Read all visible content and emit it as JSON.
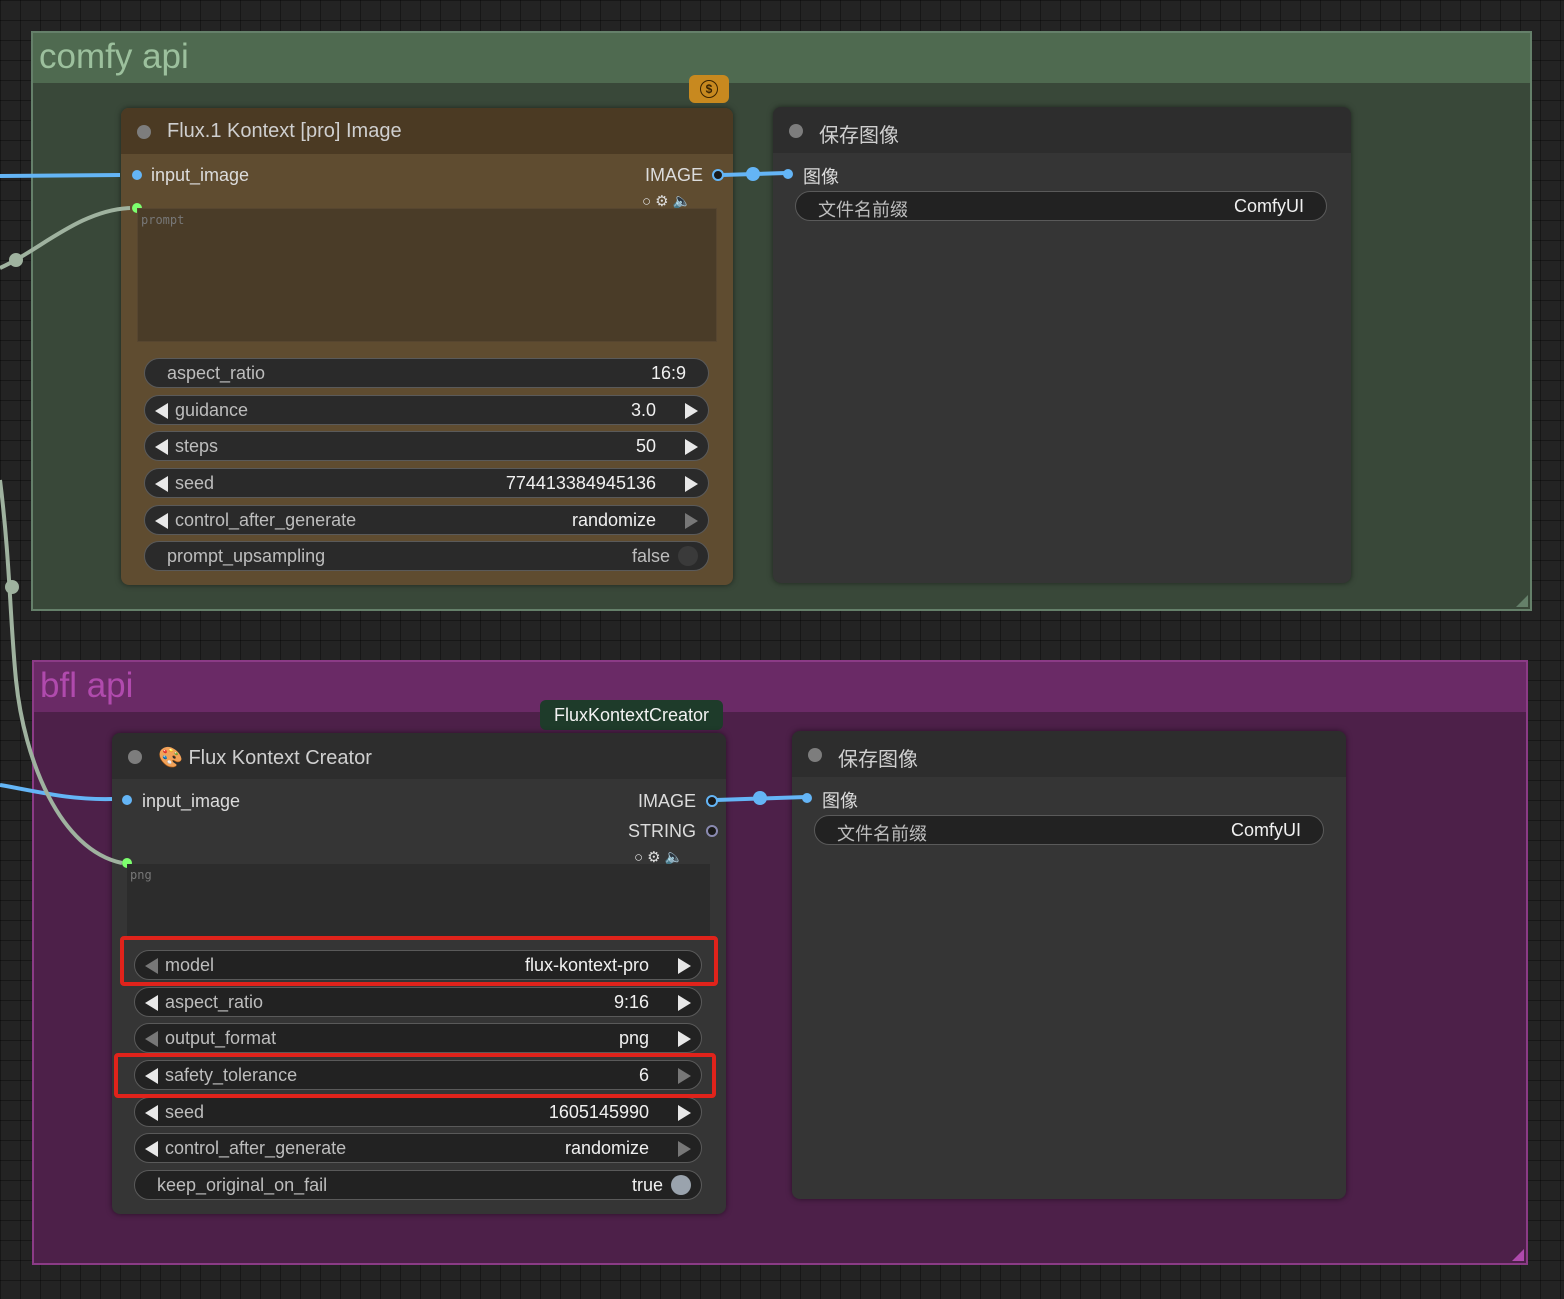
{
  "groups": {
    "comfy": {
      "title": "comfy api",
      "color": "#4f6a50"
    },
    "bfl": {
      "title": "bfl api",
      "color": "#6a2a66"
    }
  },
  "pricing_badge": {
    "symbol": "$"
  },
  "comfy_flux_node": {
    "title": "Flux.1 Kontext [pro] Image",
    "input_image_label": "input_image",
    "output_image_label": "IMAGE",
    "prompt_placeholder": "prompt",
    "widgets": {
      "aspect_ratio": {
        "label": "aspect_ratio",
        "value": "16:9"
      },
      "guidance": {
        "label": "guidance",
        "value": "3.0"
      },
      "steps": {
        "label": "steps",
        "value": "50"
      },
      "seed": {
        "label": "seed",
        "value": "774413384945136"
      },
      "control_after_generate": {
        "label": "control_after_generate",
        "value": "randomize"
      },
      "prompt_upsampling": {
        "label": "prompt_upsampling",
        "value": "false"
      }
    }
  },
  "comfy_save_node": {
    "title": "保存图像",
    "input_label": "图像",
    "filename_prefix_label": "文件名前缀",
    "filename_prefix_value": "ComfyUI"
  },
  "bfl_creator_badge": {
    "label": "FluxKontextCreator"
  },
  "bfl_creator_node": {
    "title": "Flux Kontext Creator",
    "input_image_label": "input_image",
    "output_image_label": "IMAGE",
    "output_string_label": "STRING",
    "prompt_text": "png",
    "widgets": {
      "model": {
        "label": "model",
        "value": "flux-kontext-pro"
      },
      "aspect_ratio": {
        "label": "aspect_ratio",
        "value": "9:16"
      },
      "output_format": {
        "label": "output_format",
        "value": "png"
      },
      "safety_tolerance": {
        "label": "safety_tolerance",
        "value": "6"
      },
      "seed": {
        "label": "seed",
        "value": "1605145990"
      },
      "control_after_generate": {
        "label": "control_after_generate",
        "value": "randomize"
      },
      "keep_original_on_fail": {
        "label": "keep_original_on_fail",
        "value": "true"
      }
    }
  },
  "bfl_save_node": {
    "title": "保存图像",
    "input_label": "图像",
    "filename_prefix_label": "文件名前缀",
    "filename_prefix_value": "ComfyUI"
  },
  "colors": {
    "image_link": "#64b5f6",
    "string_link": "#9fb29f",
    "highlight": "#e0231b",
    "flux_node_body": "#5f4c30",
    "flux_node_title": "#4b3a23"
  }
}
